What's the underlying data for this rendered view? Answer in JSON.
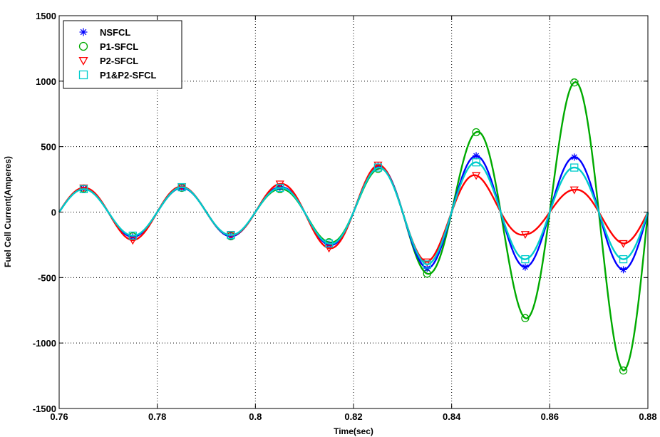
{
  "chart_data": {
    "type": "line",
    "xlabel": "Time(sec)",
    "ylabel": "Fuel Cell Current(Amperes)",
    "xlim": [
      0.76,
      0.88
    ],
    "ylim": [
      -1500,
      1500
    ],
    "x_ticks": [
      0.76,
      0.78,
      0.8,
      0.82,
      0.84,
      0.86,
      0.88
    ],
    "x_tick_labels": [
      "0.76",
      "0.78",
      "0.8",
      "0.82",
      "0.84",
      "0.86",
      "0.88"
    ],
    "y_ticks": [
      -1500,
      -1000,
      -500,
      0,
      500,
      1000,
      1500
    ],
    "y_tick_labels": [
      "-1500",
      "-1000",
      "-500",
      "0",
      "500",
      "1000",
      "1500"
    ],
    "grid": "dotted",
    "legend_position": "top-left",
    "frequency_hz": 50,
    "peak_times": [
      0.765,
      0.775,
      0.785,
      0.795,
      0.805,
      0.815,
      0.825,
      0.835,
      0.845,
      0.855,
      0.865,
      0.875
    ],
    "series": [
      {
        "name": "NSFCL",
        "color": "#0000ff",
        "marker": "star",
        "peak_values": [
          180,
          -190,
          185,
          -185,
          190,
          -250,
          350,
          -430,
          430,
          -420,
          420,
          -440
        ]
      },
      {
        "name": "P1-SFCL",
        "color": "#00aa00",
        "marker": "circle",
        "peak_values": [
          180,
          -185,
          185,
          -185,
          175,
          -230,
          330,
          -470,
          610,
          -810,
          990,
          -1210
        ]
      },
      {
        "name": "P2-SFCL",
        "color": "#ff0000",
        "marker": "triangle-down",
        "peak_values": [
          185,
          -215,
          195,
          -175,
          215,
          -275,
          360,
          -380,
          280,
          -170,
          170,
          -240
        ]
      },
      {
        "name": "P1&P2-SFCL",
        "color": "#00cccc",
        "marker": "square",
        "peak_values": [
          175,
          -180,
          190,
          -175,
          185,
          -240,
          340,
          -400,
          380,
          -360,
          340,
          -360
        ]
      }
    ]
  }
}
